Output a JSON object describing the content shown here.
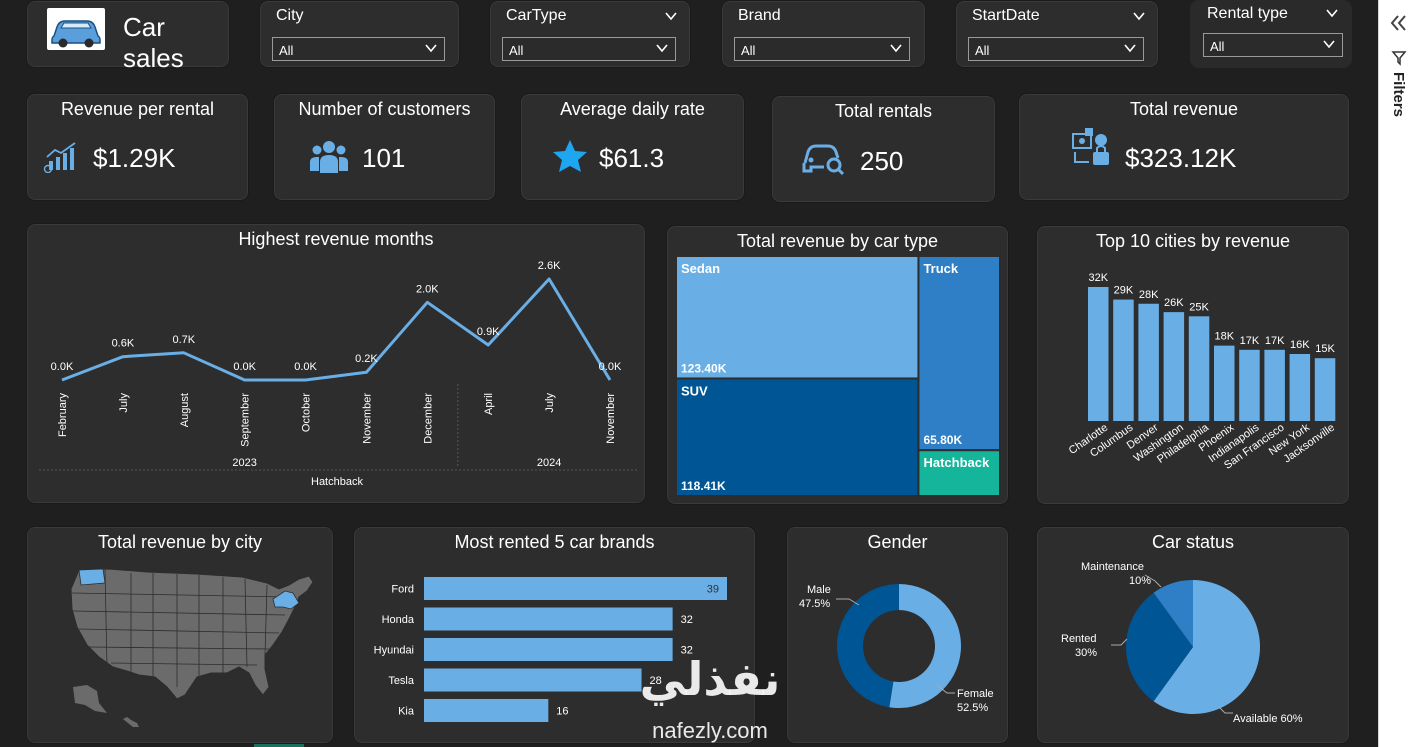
{
  "header": {
    "title": "Car sales",
    "icon": "car-icon"
  },
  "slicers": [
    {
      "label": "City",
      "value": "All"
    },
    {
      "label": "CarType",
      "value": "All"
    },
    {
      "label": "Brand",
      "value": "All"
    },
    {
      "label": "StartDate",
      "value": "All"
    },
    {
      "label": "Rental type",
      "value": "All"
    }
  ],
  "kpis": [
    {
      "title": "Revenue per rental",
      "value": "$1.29K",
      "icon": "chart-growth-icon"
    },
    {
      "title": "Number of customers",
      "value": "101",
      "icon": "users-icon"
    },
    {
      "title": "Average daily rate",
      "value": "$61.3",
      "icon": "star-icon"
    },
    {
      "title": "Total rentals",
      "value": "250",
      "icon": "car-key-icon"
    },
    {
      "title": "Total revenue",
      "value": "$323.12K",
      "icon": "money-icon"
    }
  ],
  "colors": {
    "bar": "#6aaee6",
    "dark_blue": "#005694",
    "mid_blue": "#2f7fc6",
    "teal": "#14b59a",
    "card": "#2d2d2d",
    "background": "#1f1f1f"
  },
  "filters_pane": {
    "label": "Filters"
  },
  "watermark": {
    "arabic": "نفذلي",
    "latin": "nafezly.com"
  },
  "chart_data": [
    {
      "id": "revenue_months",
      "type": "line",
      "title": "Highest revenue months",
      "categories": [
        "February",
        "July",
        "August",
        "September",
        "October",
        "November",
        "December",
        "April",
        "July",
        "November"
      ],
      "year_groups": [
        {
          "label": "2023",
          "span": 7
        },
        {
          "label": "2024",
          "span": 3
        }
      ],
      "group_label": "Hatchback",
      "values": [
        0.0,
        0.6,
        0.7,
        0.0,
        0.0,
        0.2,
        2.0,
        0.9,
        2.6,
        0.0
      ],
      "data_labels": [
        "0.0K",
        "0.6K",
        "0.7K",
        "0.0K",
        "0.0K",
        "0.2K",
        "2.0K",
        "0.9K",
        "2.6K",
        "0.0K"
      ],
      "ylim": [
        0,
        2.6
      ]
    },
    {
      "id": "revenue_cartype",
      "type": "treemap",
      "title": "Total revenue by car type",
      "items": [
        {
          "name": "Sedan",
          "value": 123.4,
          "label": "123.40K",
          "color": "#6aaee6"
        },
        {
          "name": "SUV",
          "value": 118.41,
          "label": "118.41K",
          "color": "#005694"
        },
        {
          "name": "Truck",
          "value": 65.8,
          "label": "65.80K",
          "color": "#2f7fc6"
        },
        {
          "name": "Hatchback",
          "value": 15.51,
          "label": "",
          "color": "#14b59a"
        }
      ]
    },
    {
      "id": "top_cities",
      "type": "bar",
      "title": "Top 10 cities by revenue",
      "categories": [
        "Charlotte",
        "Columbus",
        "Denver",
        "Washington",
        "Philadelphia",
        "Phoenix",
        "Indianapolis",
        "San Francisco",
        "New York",
        "Jacksonville"
      ],
      "values": [
        32,
        29,
        28,
        26,
        25,
        18,
        17,
        17,
        16,
        15
      ],
      "data_labels": [
        "32K",
        "29K",
        "28K",
        "26K",
        "25K",
        "18K",
        "17K",
        "17K",
        "16K",
        "15K"
      ],
      "ylim": [
        0,
        32
      ]
    },
    {
      "id": "revenue_city_map",
      "type": "map",
      "title": "Total revenue by city",
      "highlighted": [
        "Washington State",
        "New York"
      ]
    },
    {
      "id": "brands",
      "type": "bar",
      "orientation": "horizontal",
      "title": "Most rented 5 car brands",
      "categories": [
        "Ford",
        "Honda",
        "Hyundai",
        "Tesla",
        "Kia"
      ],
      "values": [
        39,
        32,
        32,
        28,
        16
      ],
      "xlim": [
        0,
        39
      ]
    },
    {
      "id": "gender",
      "type": "pie",
      "donut": true,
      "title": "Gender",
      "slices": [
        {
          "name": "Male",
          "value": 47.5,
          "label": "47.5%",
          "color": "#005694"
        },
        {
          "name": "Female",
          "value": 52.5,
          "label": "52.5%",
          "color": "#6aaee6"
        }
      ]
    },
    {
      "id": "car_status",
      "type": "pie",
      "title": "Car status",
      "slices": [
        {
          "name": "Available",
          "value": 60,
          "label": "60%",
          "color": "#6aaee6"
        },
        {
          "name": "Rented",
          "value": 30,
          "label": "30%",
          "color": "#005694"
        },
        {
          "name": "Maintenance",
          "value": 10,
          "label": "10%",
          "color": "#2f7fc6"
        }
      ]
    }
  ]
}
